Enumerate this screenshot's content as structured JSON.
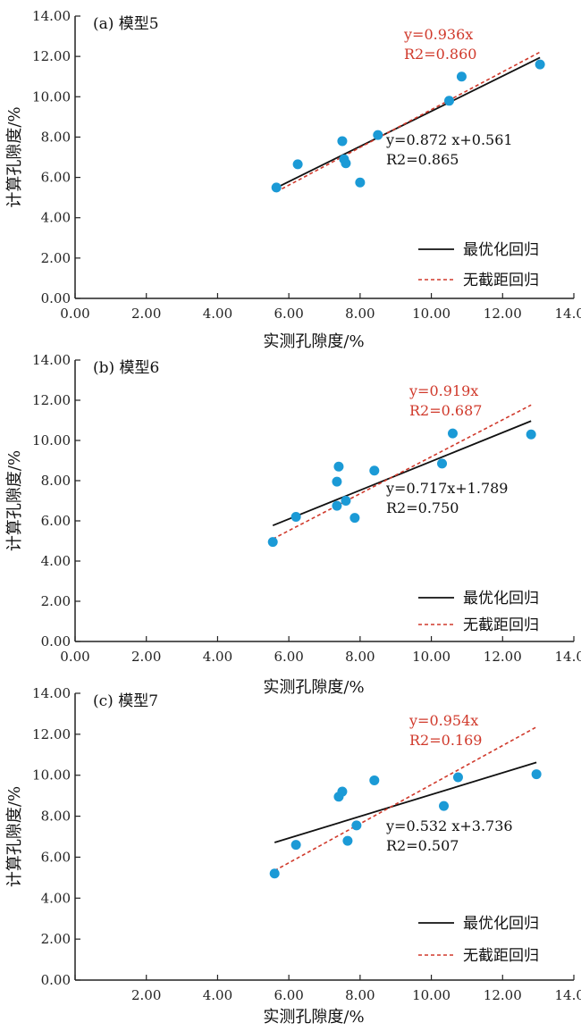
{
  "colors": {
    "point": "#1b9ad6",
    "fit_line": "#111111",
    "no_intercept_line": "#d0392b",
    "axis": "#222222"
  },
  "legend": {
    "fit_label": "最优化回归",
    "no_intercept_label": "无截距回归"
  },
  "chart_data": [
    {
      "type": "scatter",
      "panel": "(a)",
      "title": "(a) 模型5",
      "xlabel": "实测孔隙度/%",
      "ylabel": "计算孔隙度/%",
      "xlim": [
        0,
        14
      ],
      "ylim": [
        0,
        14
      ],
      "x_ticks": [
        "0.00",
        "2.00",
        "4.00",
        "6.00",
        "8.00",
        "10.00",
        "12.00",
        "14.00"
      ],
      "y_ticks": [
        "0.00",
        "2.00",
        "4.00",
        "6.00",
        "8.00",
        "10.00",
        "12.00",
        "14.00"
      ],
      "legend_position": "bottom-right",
      "points": [
        {
          "x": 5.65,
          "y": 5.5
        },
        {
          "x": 6.25,
          "y": 6.65
        },
        {
          "x": 7.5,
          "y": 7.8
        },
        {
          "x": 7.55,
          "y": 6.9
        },
        {
          "x": 7.6,
          "y": 6.7
        },
        {
          "x": 8.0,
          "y": 5.75
        },
        {
          "x": 8.5,
          "y": 8.1
        },
        {
          "x": 10.5,
          "y": 9.8
        },
        {
          "x": 10.85,
          "y": 11.0
        },
        {
          "x": 13.05,
          "y": 11.6
        }
      ],
      "fit_line": {
        "slope": 0.872,
        "intercept": 0.561,
        "x_range": [
          5.65,
          13.05
        ],
        "equation": "y=0.872 x+0.561",
        "r2": "R2=0.865",
        "r2_value": "0.865"
      },
      "no_intercept_line": {
        "slope": 0.936,
        "intercept": 0,
        "x_range": [
          5.65,
          13.05
        ],
        "equation": "y=0.936x",
        "r2": "R2=0.860",
        "r2_value": "0.860"
      }
    },
    {
      "type": "scatter",
      "panel": "(b)",
      "title": "(b) 模型6",
      "xlabel": "实测孔隙度/%",
      "ylabel": "计算孔隙度/%",
      "xlim": [
        0,
        14
      ],
      "ylim": [
        0,
        14
      ],
      "x_ticks": [
        "0.00",
        "2.00",
        "4.00",
        "6.00",
        "8.00",
        "10.00",
        "12.00",
        "14.00"
      ],
      "y_ticks": [
        "0.00",
        "2.00",
        "4.00",
        "6.00",
        "8.00",
        "10.00",
        "12.00",
        "14.00"
      ],
      "legend_position": "bottom-right",
      "points": [
        {
          "x": 5.55,
          "y": 4.95
        },
        {
          "x": 6.2,
          "y": 6.2
        },
        {
          "x": 7.35,
          "y": 7.95
        },
        {
          "x": 7.4,
          "y": 8.7
        },
        {
          "x": 7.35,
          "y": 6.75
        },
        {
          "x": 7.6,
          "y": 7.0
        },
        {
          "x": 7.85,
          "y": 6.15
        },
        {
          "x": 8.4,
          "y": 8.5
        },
        {
          "x": 10.3,
          "y": 8.85
        },
        {
          "x": 10.6,
          "y": 10.35
        },
        {
          "x": 12.8,
          "y": 10.3
        }
      ],
      "fit_line": {
        "slope": 0.717,
        "intercept": 1.789,
        "x_range": [
          5.55,
          12.8
        ],
        "equation": "y=0.717x+1.789",
        "r2": "R2=0.750",
        "r2_value": "0.750"
      },
      "no_intercept_line": {
        "slope": 0.919,
        "intercept": 0,
        "x_range": [
          5.55,
          12.8
        ],
        "equation": "y=0.919x",
        "r2": "R2=0.687",
        "r2_value": "0.687"
      }
    },
    {
      "type": "scatter",
      "panel": "(c)",
      "title": "(c) 模型7",
      "xlabel": "实测孔隙度/%",
      "ylabel": "计算孔隙度/%",
      "xlim": [
        0,
        14
      ],
      "ylim": [
        0,
        14
      ],
      "x_ticks": [
        "",
        "2.00",
        "4.00",
        "6.00",
        "8.00",
        "10.00",
        "12.00",
        "14.00"
      ],
      "y_ticks": [
        "0.00",
        "2.00",
        "4.00",
        "6.00",
        "8.00",
        "10.00",
        "12.00",
        "14.00"
      ],
      "legend_position": "bottom-right",
      "points": [
        {
          "x": 5.6,
          "y": 5.2
        },
        {
          "x": 6.2,
          "y": 6.6
        },
        {
          "x": 7.4,
          "y": 8.95
        },
        {
          "x": 7.5,
          "y": 9.2
        },
        {
          "x": 7.65,
          "y": 6.8
        },
        {
          "x": 7.9,
          "y": 7.55
        },
        {
          "x": 8.4,
          "y": 9.75
        },
        {
          "x": 10.35,
          "y": 8.5
        },
        {
          "x": 10.75,
          "y": 9.9
        },
        {
          "x": 12.95,
          "y": 10.05
        }
      ],
      "fit_line": {
        "slope": 0.532,
        "intercept": 3.736,
        "x_range": [
          5.6,
          12.95
        ],
        "equation": "y=0.532 x+3.736",
        "r2": "R2=0.507",
        "r2_value": "0.507"
      },
      "no_intercept_line": {
        "slope": 0.954,
        "intercept": 0,
        "x_range": [
          5.6,
          12.95
        ],
        "equation": "y=0.954x",
        "r2": "R2=0.169",
        "r2_value": "0.169"
      }
    }
  ]
}
